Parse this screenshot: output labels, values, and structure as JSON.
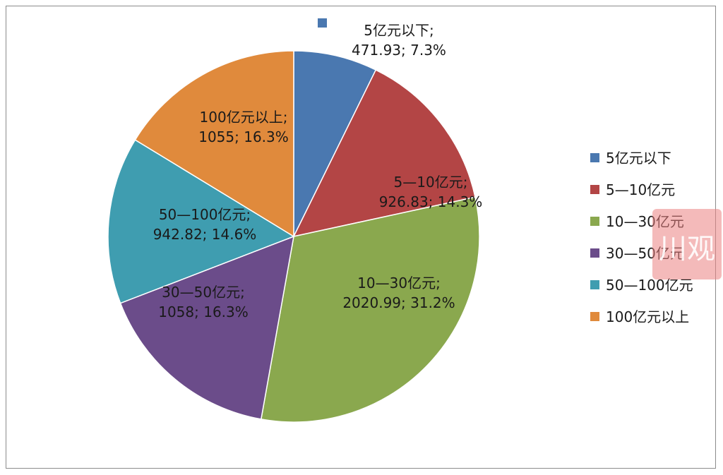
{
  "chart_data": {
    "type": "pie",
    "title": "",
    "legend_position": "right",
    "slices": [
      {
        "name": "5亿元以下",
        "value": 471.93,
        "percent": "7.3%",
        "label_lines": [
          "5亿元以下;",
          "471.93; 7.3%"
        ],
        "color": "#4a78b0"
      },
      {
        "name": "5—10亿元",
        "value": 926.83,
        "percent": "14.3%",
        "label_lines": [
          "5—10亿元;",
          "926.83; 14.3%"
        ],
        "color": "#b34545"
      },
      {
        "name": "10—30亿元",
        "value": 2020.99,
        "percent": "31.2%",
        "label_lines": [
          "10—30亿元;",
          "2020.99; 31.2%"
        ],
        "color": "#8aa84e"
      },
      {
        "name": "30—50亿元",
        "value": 1058,
        "percent": "16.3%",
        "label_lines": [
          "30—50亿元;",
          "1058; 16.3%"
        ],
        "color": "#6b4c8a"
      },
      {
        "name": "50—100亿元",
        "value": 942.82,
        "percent": "14.6%",
        "label_lines": [
          "50—100亿元;",
          "942.82; 14.6%"
        ],
        "color": "#3f9db0"
      },
      {
        "name": "100亿元以上",
        "value": 1055,
        "percent": "16.3%",
        "label_lines": [
          "100亿元以上;",
          "1055; 16.3%"
        ],
        "color": "#e08a3c"
      }
    ],
    "legend": [
      "5亿元以下",
      "5—10亿元",
      "10—30亿元",
      "30—50亿元",
      "50—100亿元",
      "100亿元以上"
    ]
  },
  "watermark": {
    "text": "川观",
    "color": "#eb8282"
  }
}
